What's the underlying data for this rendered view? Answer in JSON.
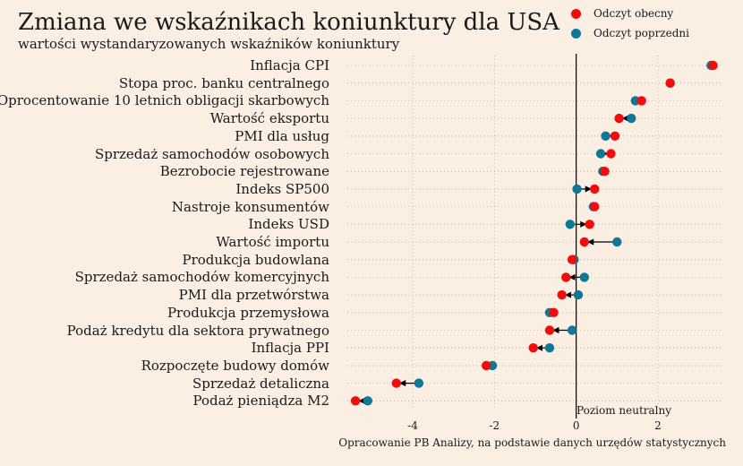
{
  "chart_data": {
    "type": "dot",
    "title": "Zmiana we wskaźnikach koniunktury dla USA",
    "subtitle": "wartości wystandaryzowanych wskaźników koniunktury",
    "legend": [
      {
        "name": "Odczyt obecny",
        "color": "#f20c0c"
      },
      {
        "name": "Odczyt poprzedni",
        "color": "#0e7896"
      }
    ],
    "categories": [
      "Inflacja CPI",
      "Stopa proc. banku centralnego",
      "Oprocentowanie 10 letnich obligacji skarbowych",
      "Wartość eksportu",
      "PMI dla usług",
      "Sprzedaż samochodów osobowych",
      "Bezrobocie rejestrowane",
      "Indeks SP500",
      "Nastroje konsumentów",
      "Indeks USD",
      "Wartość importu",
      "Produkcja budowlana",
      "Sprzedaż samochodów komercyjnych",
      "PMI dla przetwórstwa",
      "Produkcja przemysłowa",
      "Podaż kredytu dla sektora prywatnego",
      "Inflacja PPI",
      "Rozpoczęte budowy domów",
      "Sprzedaż detaliczna",
      "Podaż pieniądza M2"
    ],
    "series": [
      {
        "name": "Odczyt obecny",
        "values": [
          3.35,
          2.3,
          1.6,
          1.05,
          0.95,
          0.85,
          0.7,
          0.45,
          0.45,
          0.33,
          0.2,
          -0.1,
          -0.25,
          -0.35,
          -0.55,
          -0.65,
          -1.05,
          -2.2,
          -4.4,
          -5.4
        ]
      },
      {
        "name": "Odczyt poprzedni",
        "values": [
          3.3,
          2.3,
          1.45,
          1.35,
          0.72,
          0.6,
          0.65,
          0.02,
          0.42,
          -0.15,
          1.0,
          -0.05,
          0.2,
          0.05,
          -0.65,
          -0.1,
          -0.65,
          -2.05,
          -3.85,
          -5.1
        ]
      }
    ],
    "xlim": [
      -5.6,
      3.6
    ],
    "xticks": [
      -4,
      -2,
      0,
      2
    ],
    "annotation": "Poziom neutralny",
    "source": "Opracowanie PB Analizy, na podstawie danych urzędów statystycznych"
  }
}
